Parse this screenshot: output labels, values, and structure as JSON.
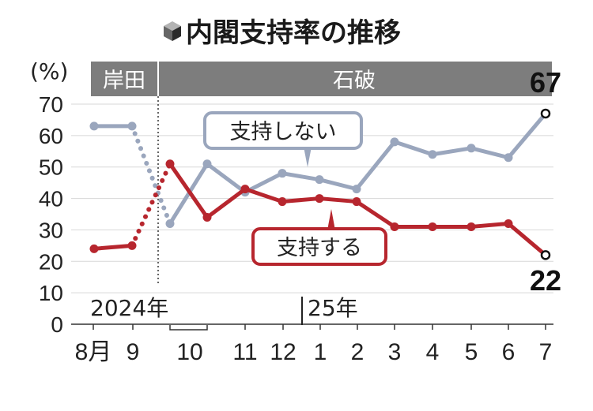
{
  "chart_data": {
    "type": "line",
    "title": "内閣支持率の推移",
    "y_unit_label": "(%)",
    "ylim": [
      0,
      70
    ],
    "y_ticks": [
      "0",
      "10",
      "20",
      "30",
      "40",
      "50",
      "60",
      "70"
    ],
    "x_tick_labels": [
      "8月",
      "9",
      "10",
      "11",
      "12",
      "1",
      "2",
      "3",
      "4",
      "5",
      "6",
      "7"
    ],
    "year_labels": [
      "2024年",
      "25年"
    ],
    "periods": [
      "岸田",
      "石破"
    ],
    "series": [
      {
        "name": "支持しない",
        "color": "#9aa6bd",
        "values": [
          {
            "x": "8月",
            "y": 63
          },
          {
            "x": "9",
            "y": 63
          },
          {
            "x": "10",
            "y": 32
          },
          {
            "x": "10",
            "y": 51
          },
          {
            "x": "11",
            "y": 42
          },
          {
            "x": "12",
            "y": 48
          },
          {
            "x": "12",
            "y": 46
          },
          {
            "x": "1",
            "y": 43
          },
          {
            "x": "2",
            "y": 58
          },
          {
            "x": "3",
            "y": 54
          },
          {
            "x": "4",
            "y": 56
          },
          {
            "x": "5",
            "y": 53
          },
          {
            "x": "6",
            "y": 67
          }
        ]
      },
      {
        "name": "支持する",
        "color": "#b7262e",
        "values": [
          {
            "x": "8月",
            "y": 24
          },
          {
            "x": "9",
            "y": 25
          },
          {
            "x": "10",
            "y": 51
          },
          {
            "x": "10",
            "y": 34
          },
          {
            "x": "11",
            "y": 43
          },
          {
            "x": "12",
            "y": 39
          },
          {
            "x": "12",
            "y": 40
          },
          {
            "x": "1",
            "y": 39
          },
          {
            "x": "2",
            "y": 31
          },
          {
            "x": "3",
            "y": 31
          },
          {
            "x": "4",
            "y": 31
          },
          {
            "x": "5",
            "y": 32
          },
          {
            "x": "6",
            "y": 22
          }
        ]
      }
    ],
    "end_labels": {
      "支持しない": "67",
      "支持する": "22"
    }
  }
}
